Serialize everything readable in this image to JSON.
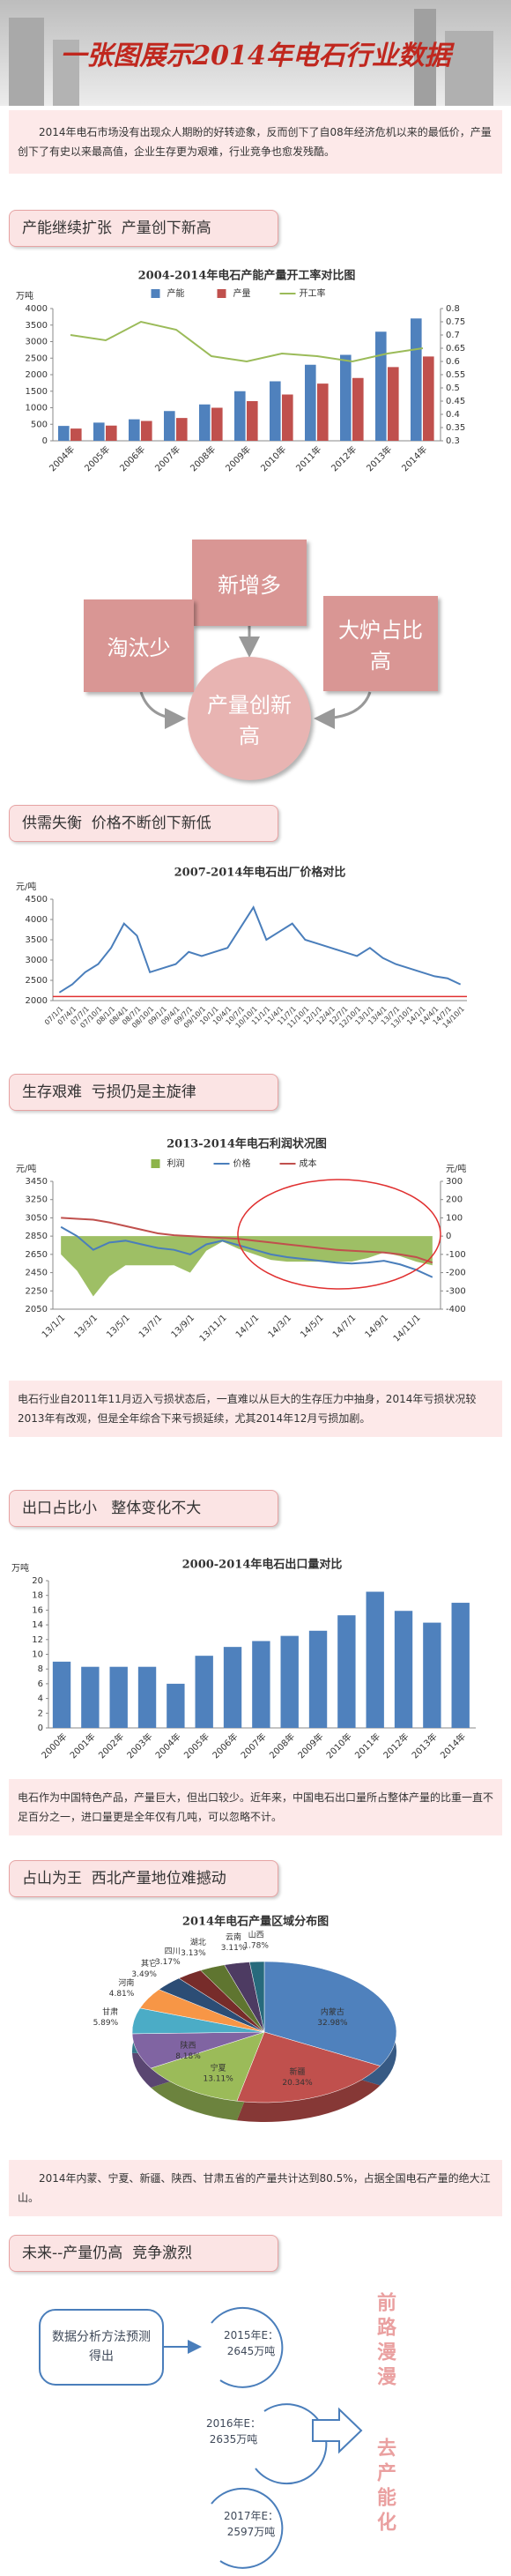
{
  "header": {
    "title": "一张图展示2014年电石行业数据"
  },
  "intro": "2014年电石市场没有出现众人期盼的好转迹象，反而创下了自08年经济危机以来的最低价，产量创下了有史以来最高值，企业生存更为艰难，行业竞争也愈发残酷。",
  "sections": [
    "产能继续扩张  产量创下新高",
    "供需失衡  价格不断创下新低",
    "生存艰难  亏损仍是主旋律",
    "出口占比小   整体变化不大",
    "占山为王  西北产量地位难撼动",
    "未来--产量仍高  竞争激烈"
  ],
  "diagram": {
    "top": "新增多",
    "left": "淘汰少",
    "right": "大炉占比高",
    "center": "产量创新高"
  },
  "notes": [
    "电石行业自2011年11月迈入亏损状态后，一直难以从巨大的生存压力中抽身，2014年亏损状况较2013年有改观，但是全年综合下来亏损延续，尤其2014年12月亏损加剧。",
    "电石作为中国特色产品，产量巨大，但出口较少。近年来，中国电石出口量所占整体产量的比重一直不足百分之一，进口量更是全年仅有几吨，可以忽略不计。",
    "2014年内蒙、宁夏、新疆、陕西、甘肃五省的产量共计达到80.5%，占据全国电石产量的绝大江山。"
  ],
  "forecast": {
    "method": "数据分析方法预测得出",
    "items": [
      {
        "year": "2015年E：",
        "value": "2645万吨"
      },
      {
        "year": "2016年E：",
        "value": "2635万吨"
      },
      {
        "year": "2017年E：",
        "value": "2597万吨"
      }
    ],
    "side": [
      "前路漫漫",
      "去产能化"
    ]
  },
  "chart_data": [
    {
      "type": "bar",
      "title": "2004-2014年电石产能产量开工率对比图",
      "y_label": "万吨",
      "categories": [
        "2004年",
        "2005年",
        "2006年",
        "2007年",
        "2008年",
        "2009年",
        "2010年",
        "2011年",
        "2012年",
        "2013年",
        "2014年"
      ],
      "series": [
        {
          "name": "产能",
          "color": "#4f81bd",
          "values": [
            450,
            550,
            650,
            900,
            1100,
            1500,
            1800,
            2300,
            2600,
            3300,
            3700
          ]
        },
        {
          "name": "产量",
          "color": "#c0504d",
          "values": [
            370,
            460,
            600,
            690,
            1000,
            1200,
            1400,
            1730,
            1900,
            2230,
            2550
          ]
        },
        {
          "name": "开工率",
          "color": "#9bbb59",
          "type": "line",
          "axis": "y2",
          "values": [
            0.7,
            0.68,
            0.75,
            0.72,
            0.62,
            0.6,
            0.63,
            0.62,
            0.6,
            0.63,
            0.65
          ]
        }
      ],
      "ylim": [
        0,
        4000
      ],
      "yticks": [
        0,
        500,
        1000,
        1500,
        2000,
        2500,
        3000,
        3500,
        4000
      ],
      "y2lim": [
        0.3,
        0.8
      ],
      "y2ticks": [
        0.3,
        0.35,
        0.4,
        0.45,
        0.5,
        0.55,
        0.6,
        0.65,
        0.7,
        0.75,
        0.8
      ],
      "legend": "top"
    },
    {
      "type": "line",
      "title": "2007-2014年电石出厂价格对比",
      "y_label": "元/吨",
      "categories": [
        "07/1/1",
        "07/4/1",
        "07/7/1",
        "07/10/1",
        "08/1/1",
        "08/4/1",
        "08/7/1",
        "08/10/1",
        "09/1/1",
        "09/4/1",
        "09/7/1",
        "09/10/1",
        "10/1/1",
        "10/4/1",
        "10/7/1",
        "10/10/1",
        "11/1/1",
        "11/4/1",
        "11/7/1",
        "11/10/1",
        "12/1/1",
        "12/4/1",
        "12/7/1",
        "12/10/1",
        "13/1/1",
        "13/4/1",
        "13/7/1",
        "13/10/1",
        "14/1/1",
        "14/4/1",
        "14/7/1",
        "14/10/1"
      ],
      "series": [
        {
          "color": "#4a7ebb",
          "values": [
            2200,
            2400,
            2700,
            2900,
            3300,
            3900,
            3600,
            2700,
            2800,
            2900,
            3200,
            3100,
            3200,
            3300,
            3800,
            4300,
            3500,
            3700,
            3900,
            3500,
            3400,
            3300,
            3200,
            3100,
            3300,
            3050,
            2900,
            2800,
            2700,
            2600,
            2550,
            2400
          ]
        }
      ],
      "reference_line": 2100,
      "ylim": [
        2000,
        4500
      ],
      "yticks": [
        2000,
        2500,
        3000,
        3500,
        4000,
        4500
      ]
    },
    {
      "type": "line",
      "title": "2013-2014年电石利润状况图",
      "y_label": "元/吨",
      "y2_label": "元/吨",
      "categories": [
        "13/1/1",
        null,
        "13/3/1",
        null,
        "13/5/1",
        null,
        "13/7/1",
        null,
        "13/9/1",
        null,
        "13/11/1",
        null,
        "14/1/1",
        null,
        "14/3/1",
        null,
        "14/5/1",
        null,
        "14/7/1",
        null,
        "14/9/1",
        null,
        "14/11/1",
        null
      ],
      "series": [
        {
          "name": "利润",
          "color": "#8db44a",
          "type": "area",
          "axis": "y2",
          "values": [
            -100,
            -190,
            -330,
            -220,
            -160,
            -160,
            -160,
            -160,
            -200,
            -80,
            -30,
            -70,
            -100,
            -130,
            -140,
            -140,
            -140,
            -140,
            -140,
            -120,
            -90,
            -110,
            -140,
            -160
          ]
        },
        {
          "name": "价格",
          "color": "#4a7ebb",
          "values": [
            2950,
            2850,
            2700,
            2780,
            2800,
            2760,
            2720,
            2700,
            2650,
            2760,
            2800,
            2750,
            2700,
            2650,
            2620,
            2600,
            2580,
            2560,
            2550,
            2560,
            2580,
            2540,
            2480,
            2400
          ]
        },
        {
          "name": "成本",
          "color": "#c0504d",
          "values": [
            3050,
            3040,
            3030,
            3000,
            2960,
            2920,
            2880,
            2860,
            2850,
            2840,
            2830,
            2820,
            2800,
            2780,
            2760,
            2740,
            2720,
            2700,
            2690,
            2680,
            2670,
            2650,
            2620,
            2560
          ]
        }
      ],
      "ylim": [
        2050,
        3450
      ],
      "yticks": [
        2050,
        2250,
        2450,
        2650,
        2850,
        3050,
        3250,
        3450
      ],
      "y2lim": [
        -400,
        300
      ],
      "y2ticks": [
        -400,
        -300,
        -200,
        -100,
        0,
        100,
        200,
        300
      ],
      "legend": "top"
    },
    {
      "type": "bar",
      "title": "2000-2014年电石出口量对比",
      "y_label": "万吨",
      "categories": [
        "2000年",
        "2001年",
        "2002年",
        "2003年",
        "2004年",
        "2005年",
        "2006年",
        "2007年",
        "2008年",
        "2009年",
        "2010年",
        "2011年",
        "2012年",
        "2013年",
        "2014年"
      ],
      "values": [
        9,
        8.3,
        8.3,
        8.3,
        6,
        9.8,
        11,
        11.8,
        12.5,
        13.2,
        15.3,
        18.5,
        15.9,
        14.3,
        17
      ],
      "color": "#4f81bd",
      "ylim": [
        0,
        20
      ],
      "yticks": [
        0,
        2,
        4,
        6,
        8,
        10,
        12,
        14,
        16,
        18,
        20
      ]
    },
    {
      "type": "pie",
      "title": "2014年电石产量区域分布图",
      "categories": [
        "内蒙古",
        "新疆",
        "宁夏",
        "陕西",
        "甘肃",
        "河南",
        "其它",
        "四川",
        "湖北",
        "云南",
        "山西"
      ],
      "values": [
        32.98,
        20.34,
        13.11,
        8.18,
        5.89,
        4.81,
        3.49,
        3.17,
        3.13,
        3.11,
        1.78
      ],
      "value_labels": [
        "32.98%",
        "20.34%",
        "13.11%",
        "8.18%",
        "5.89%",
        "4.81%",
        "3.49%",
        "3.17%",
        "3.13%",
        "3.11%",
        "1.78%"
      ],
      "colors": [
        "#4f81bd",
        "#c0504d",
        "#9bbb59",
        "#8064a2",
        "#4bacc6",
        "#f79646",
        "#2c4d75",
        "#772c2a",
        "#5f7530",
        "#4d3b62",
        "#276a7c"
      ]
    }
  ]
}
